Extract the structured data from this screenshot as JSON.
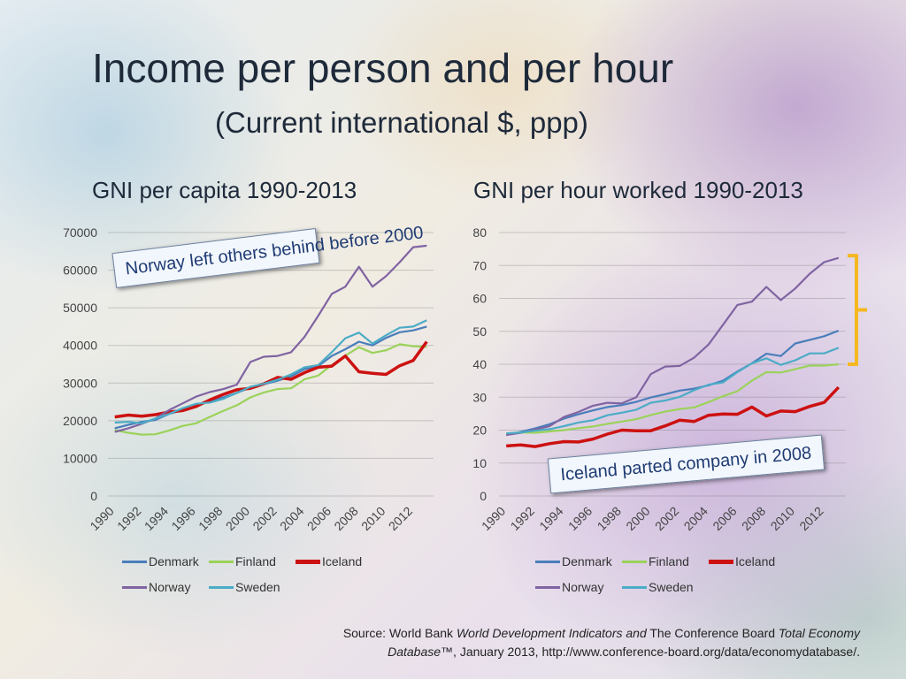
{
  "slide": {
    "title": "Income per person and per hour",
    "subtitle": "(Current international $, ppp)",
    "source": {
      "line1_prefix": "Source: World Bank ",
      "line1_italic1": "World Development Indicators and",
      "line1_middle": " The Conference Board ",
      "line1_italic2": "Total Economy",
      "line2_italic": "Database",
      "line2_rest": "™, January 2013, http://www.conference-board.org/data/economydatabase/."
    }
  },
  "callouts": {
    "chart1": "Norway left others behind before 2000",
    "chart2": "Iceland parted company in 2008"
  },
  "colors": {
    "Denmark": "#4a7ebb",
    "Finland": "#9bd25a",
    "Iceland": "#cc1111",
    "Norway": "#8064a2",
    "Sweden": "#4bacc6",
    "bracket": "#f5b820"
  },
  "chart_data": [
    {
      "type": "line",
      "title": "GNI per capita 1990-2013",
      "xlabel": "",
      "ylabel": "",
      "x": [
        1990,
        1991,
        1992,
        1993,
        1994,
        1995,
        1996,
        1997,
        1998,
        1999,
        2000,
        2001,
        2002,
        2003,
        2004,
        2005,
        2006,
        2007,
        2008,
        2009,
        2010,
        2011,
        2012,
        2013
      ],
      "xtick_labels": [
        "1990",
        "1992",
        "1994",
        "1996",
        "1998",
        "2000",
        "2002",
        "2004",
        "2006",
        "2008",
        "2010",
        "2012"
      ],
      "ylim": [
        0,
        70000
      ],
      "yticks": [
        0,
        10000,
        20000,
        30000,
        40000,
        50000,
        60000,
        70000
      ],
      "grid": true,
      "legend_position": "bottom",
      "legend_rows": [
        [
          "Denmark",
          "Finland",
          "Iceland"
        ],
        [
          "Norway",
          "Sweden"
        ]
      ],
      "series": [
        {
          "name": "Denmark",
          "values": [
            18000,
            18900,
            19700,
            20200,
            21800,
            22800,
            24000,
            25200,
            26200,
            27400,
            28800,
            29700,
            30600,
            31800,
            33700,
            34500,
            37200,
            39000,
            41000,
            40000,
            42000,
            43500,
            44000,
            45000
          ]
        },
        {
          "name": "Finland",
          "values": [
            17500,
            16800,
            16300,
            16400,
            17400,
            18600,
            19300,
            21000,
            22600,
            24100,
            26200,
            27500,
            28400,
            28600,
            31000,
            32000,
            34800,
            37300,
            39500,
            38000,
            38700,
            40300,
            39800,
            39600
          ]
        },
        {
          "name": "Iceland",
          "values": [
            21000,
            21500,
            21200,
            21600,
            22300,
            22700,
            23800,
            25500,
            27000,
            28200,
            28600,
            29800,
            31500,
            31000,
            32800,
            34200,
            34500,
            37200,
            33000,
            32600,
            32300,
            34600,
            36000,
            41000
          ]
        },
        {
          "name": "Norway",
          "values": [
            17000,
            18000,
            19200,
            20600,
            22800,
            24600,
            26400,
            27600,
            28400,
            29600,
            35600,
            37000,
            37200,
            38200,
            42300,
            47900,
            53700,
            55600,
            60900,
            55600,
            58400,
            62100,
            66100,
            66500
          ]
        },
        {
          "name": "Sweden",
          "values": [
            19500,
            19700,
            19300,
            20600,
            21800,
            23300,
            24500,
            24800,
            25800,
            27400,
            29000,
            29800,
            30900,
            32300,
            34200,
            34800,
            38200,
            41900,
            43400,
            40500,
            42700,
            44700,
            45000,
            46700
          ]
        }
      ]
    },
    {
      "type": "line",
      "title": "GNI per hour worked 1990-2013",
      "xlabel": "",
      "ylabel": "",
      "x": [
        1990,
        1991,
        1992,
        1993,
        1994,
        1995,
        1996,
        1997,
        1998,
        1999,
        2000,
        2001,
        2002,
        2003,
        2004,
        2005,
        2006,
        2007,
        2008,
        2009,
        2010,
        2011,
        2012,
        2013
      ],
      "xtick_labels": [
        "1990",
        "1992",
        "1994",
        "1996",
        "1998",
        "2000",
        "2002",
        "2004",
        "2006",
        "2008",
        "2010",
        "2012"
      ],
      "ylim": [
        0,
        80
      ],
      "yticks": [
        0,
        10,
        20,
        30,
        40,
        50,
        60,
        70,
        80
      ],
      "grid": true,
      "legend_position": "bottom",
      "legend_rows": [
        [
          "Denmark",
          "Finland",
          "Iceland"
        ],
        [
          "Norway",
          "Sweden"
        ]
      ],
      "bracket": {
        "from": 40,
        "to": 73
      },
      "series": [
        {
          "name": "Denmark",
          "values": [
            18.5,
            19.5,
            20.5,
            21.8,
            23.5,
            24.8,
            26.0,
            27.0,
            27.6,
            28.6,
            29.9,
            30.9,
            32.0,
            32.6,
            33.6,
            35.0,
            37.8,
            40.3,
            43.2,
            42.5,
            46.3,
            47.4,
            48.5,
            50.2
          ]
        },
        {
          "name": "Finland",
          "values": [
            19.0,
            19.3,
            19.2,
            19.6,
            20.0,
            20.6,
            21.1,
            21.9,
            22.6,
            23.3,
            24.6,
            25.6,
            26.4,
            26.9,
            28.5,
            30.3,
            31.8,
            35.0,
            37.6,
            37.5,
            38.5,
            39.6,
            39.6,
            40.0
          ]
        },
        {
          "name": "Iceland",
          "values": [
            15.2,
            15.5,
            15.0,
            15.9,
            16.5,
            16.4,
            17.3,
            18.8,
            20.0,
            19.8,
            19.8,
            21.3,
            23.0,
            22.6,
            24.5,
            24.9,
            24.8,
            27.0,
            24.3,
            25.8,
            25.6,
            27.2,
            28.4,
            33.0
          ]
        },
        {
          "name": "Norway",
          "values": [
            18.5,
            19.2,
            20.2,
            21.2,
            24.0,
            25.5,
            27.4,
            28.3,
            28.1,
            30.0,
            37.0,
            39.3,
            39.5,
            42.0,
            46.0,
            52.0,
            58.0,
            59.0,
            63.5,
            59.5,
            63.0,
            67.5,
            71.0,
            72.3
          ]
        },
        {
          "name": "Sweden",
          "values": [
            19.0,
            19.3,
            19.8,
            20.3,
            21.2,
            22.3,
            23.0,
            24.5,
            25.3,
            26.2,
            28.3,
            29.0,
            30.1,
            32.1,
            33.8,
            34.5,
            37.6,
            40.3,
            41.8,
            39.8,
            41.2,
            43.3,
            43.3,
            45.0
          ]
        }
      ]
    }
  ]
}
